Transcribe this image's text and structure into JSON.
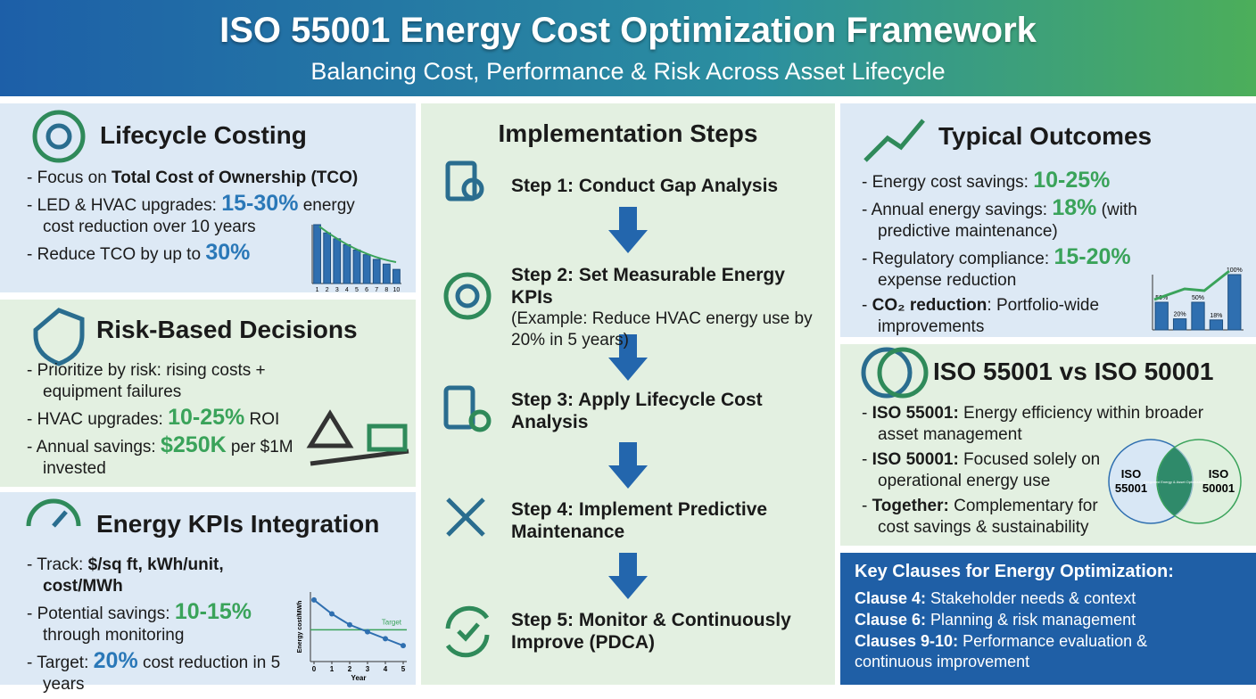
{
  "header": {
    "title": "ISO 55001 Energy Cost Optimization Framework",
    "subtitle": "Balancing Cost, Performance & Risk Across Asset Lifecycle"
  },
  "lifecycle": {
    "title": "Lifecycle Costing",
    "bullets": [
      [
        {
          "text": "Focus on ",
          "style": "plain"
        },
        {
          "text": "Total Cost of Ownership (TCO)",
          "style": "bold"
        }
      ],
      [
        {
          "text": "LED & HVAC upgrades: ",
          "style": "plain"
        },
        {
          "text": "15-30%",
          "style": "blue"
        },
        {
          "text": " energy cost reduction over 10 years",
          "style": "plain"
        }
      ],
      [
        {
          "text": "Reduce TCO by up to ",
          "style": "plain"
        },
        {
          "text": "30%",
          "style": "blue"
        }
      ]
    ],
    "chart": {
      "type": "bar",
      "categories": [
        "1",
        "2",
        "3",
        "4",
        "5",
        "6",
        "7",
        "8",
        "10"
      ],
      "values": [
        100,
        86,
        76,
        66,
        57,
        49,
        41,
        33,
        24
      ],
      "ylim": [
        0,
        100
      ],
      "color": "#2f6fb0"
    }
  },
  "risk": {
    "title": "Risk-Based Decisions",
    "bullets": [
      [
        {
          "text": "Prioritize by risk: rising costs + equipment failures",
          "style": "plain"
        }
      ],
      [
        {
          "text": "HVAC upgrades: ",
          "style": "plain"
        },
        {
          "text": "10-25%",
          "style": "green"
        },
        {
          "text": " ROI",
          "style": "plain"
        }
      ],
      [
        {
          "text": "Annual savings: ",
          "style": "plain"
        },
        {
          "text": "$250K",
          "style": "green"
        },
        {
          "text": " per $1M invested",
          "style": "plain"
        }
      ]
    ]
  },
  "kpis": {
    "title": "Energy KPIs Integration",
    "bullets": [
      [
        {
          "text": "Track: ",
          "style": "plain"
        },
        {
          "text": "$/sq ft, kWh/unit, cost/MWh",
          "style": "bold"
        }
      ],
      [
        {
          "text": "Potential savings: ",
          "style": "plain"
        },
        {
          "text": "10-15%",
          "style": "green"
        },
        {
          "text": " through monitoring",
          "style": "plain"
        }
      ],
      [
        {
          "text": "Target: ",
          "style": "plain"
        },
        {
          "text": "20%",
          "style": "blue"
        },
        {
          "text": " cost reduction in 5 years",
          "style": "plain"
        }
      ]
    ],
    "chart": {
      "type": "line",
      "x": [
        0,
        1,
        2,
        3,
        4,
        5
      ],
      "values": [
        9.2,
        7.8,
        6.7,
        6.0,
        5.3,
        4.6
      ],
      "xlim": [
        0,
        5
      ],
      "ylim": [
        3,
        10
      ],
      "xticks": [
        0,
        1,
        2,
        3,
        4,
        5
      ],
      "target": 6.2,
      "target_label": "Target",
      "xlabel": "Year",
      "ylabel": "Energy cost/MWh",
      "color": "#2f6fb0",
      "target_color": "#3aa35a"
    }
  },
  "steps": {
    "title": "Implementation Steps",
    "items": [
      {
        "title": "Step 1: Conduct Gap Analysis"
      },
      {
        "title": "Step 2: Set Measurable Energy KPIs",
        "detail": "(Example: Reduce HVAC energy use by 20% in 5 years)"
      },
      {
        "title": "Step 3: Apply Lifecycle Cost Analysis"
      },
      {
        "title": "Step 4: Implement Predictive Maintenance"
      },
      {
        "title": "Step 5: Monitor & Continuously Improve (PDCA)"
      }
    ]
  },
  "outcomes": {
    "title": "Typical Outcomes",
    "bullets": [
      [
        {
          "text": "Energy cost savings: ",
          "style": "plain"
        },
        {
          "text": "10-25%",
          "style": "green"
        }
      ],
      [
        {
          "text": "Annual energy savings: ",
          "style": "plain"
        },
        {
          "text": "18%",
          "style": "green"
        },
        {
          "text": " (with predictive maintenance)",
          "style": "plain"
        }
      ],
      [
        {
          "text": "Regulatory compliance: ",
          "style": "plain"
        },
        {
          "text": "15-20%",
          "style": "green"
        },
        {
          "text": " expense reduction",
          "style": "plain"
        }
      ],
      [
        {
          "text": "CO₂ reduction",
          "style": "bold"
        },
        {
          "text": ": Portfolio-wide improvements",
          "style": "plain"
        }
      ]
    ],
    "chart": {
      "type": "bar",
      "values": [
        50,
        20,
        50,
        18,
        100
      ],
      "value_labels": [
        "50%",
        "20%",
        "50%",
        "18%",
        "100%"
      ],
      "ylim": [
        0,
        100
      ],
      "color": "#2f6fb0"
    }
  },
  "comparison": {
    "title": "ISO 55001 vs ISO 50001",
    "bullets": [
      [
        {
          "text": "ISO 55001:",
          "style": "bold"
        },
        {
          "text": " Energy efficiency within broader asset management",
          "style": "plain"
        }
      ],
      [
        {
          "text": "ISO 50001:",
          "style": "bold"
        },
        {
          "text": " Focused solely on operational energy use",
          "style": "plain"
        }
      ],
      [
        {
          "text": "Together:",
          "style": "bold"
        },
        {
          "text": " Complementary for cost savings & sustainability",
          "style": "plain"
        }
      ]
    ],
    "venn": {
      "left": "ISO 55001",
      "right": "ISO 50001",
      "overlap": "Integrated Energy & Asset Optimization"
    }
  },
  "clauses": {
    "title": "Key Clauses for Energy Optimization:",
    "bullets": [
      [
        {
          "text": "Clause 4:",
          "style": "bold"
        },
        {
          "text": " Stakeholder needs & context",
          "style": "plain"
        }
      ],
      [
        {
          "text": "Clause 6:",
          "style": "bold"
        },
        {
          "text": " Planning & risk management",
          "style": "plain"
        }
      ],
      [
        {
          "text": "Clauses 9-10:",
          "style": "bold"
        },
        {
          "text": " Performance evaluation & continuous improvement",
          "style": "plain"
        }
      ]
    ]
  }
}
